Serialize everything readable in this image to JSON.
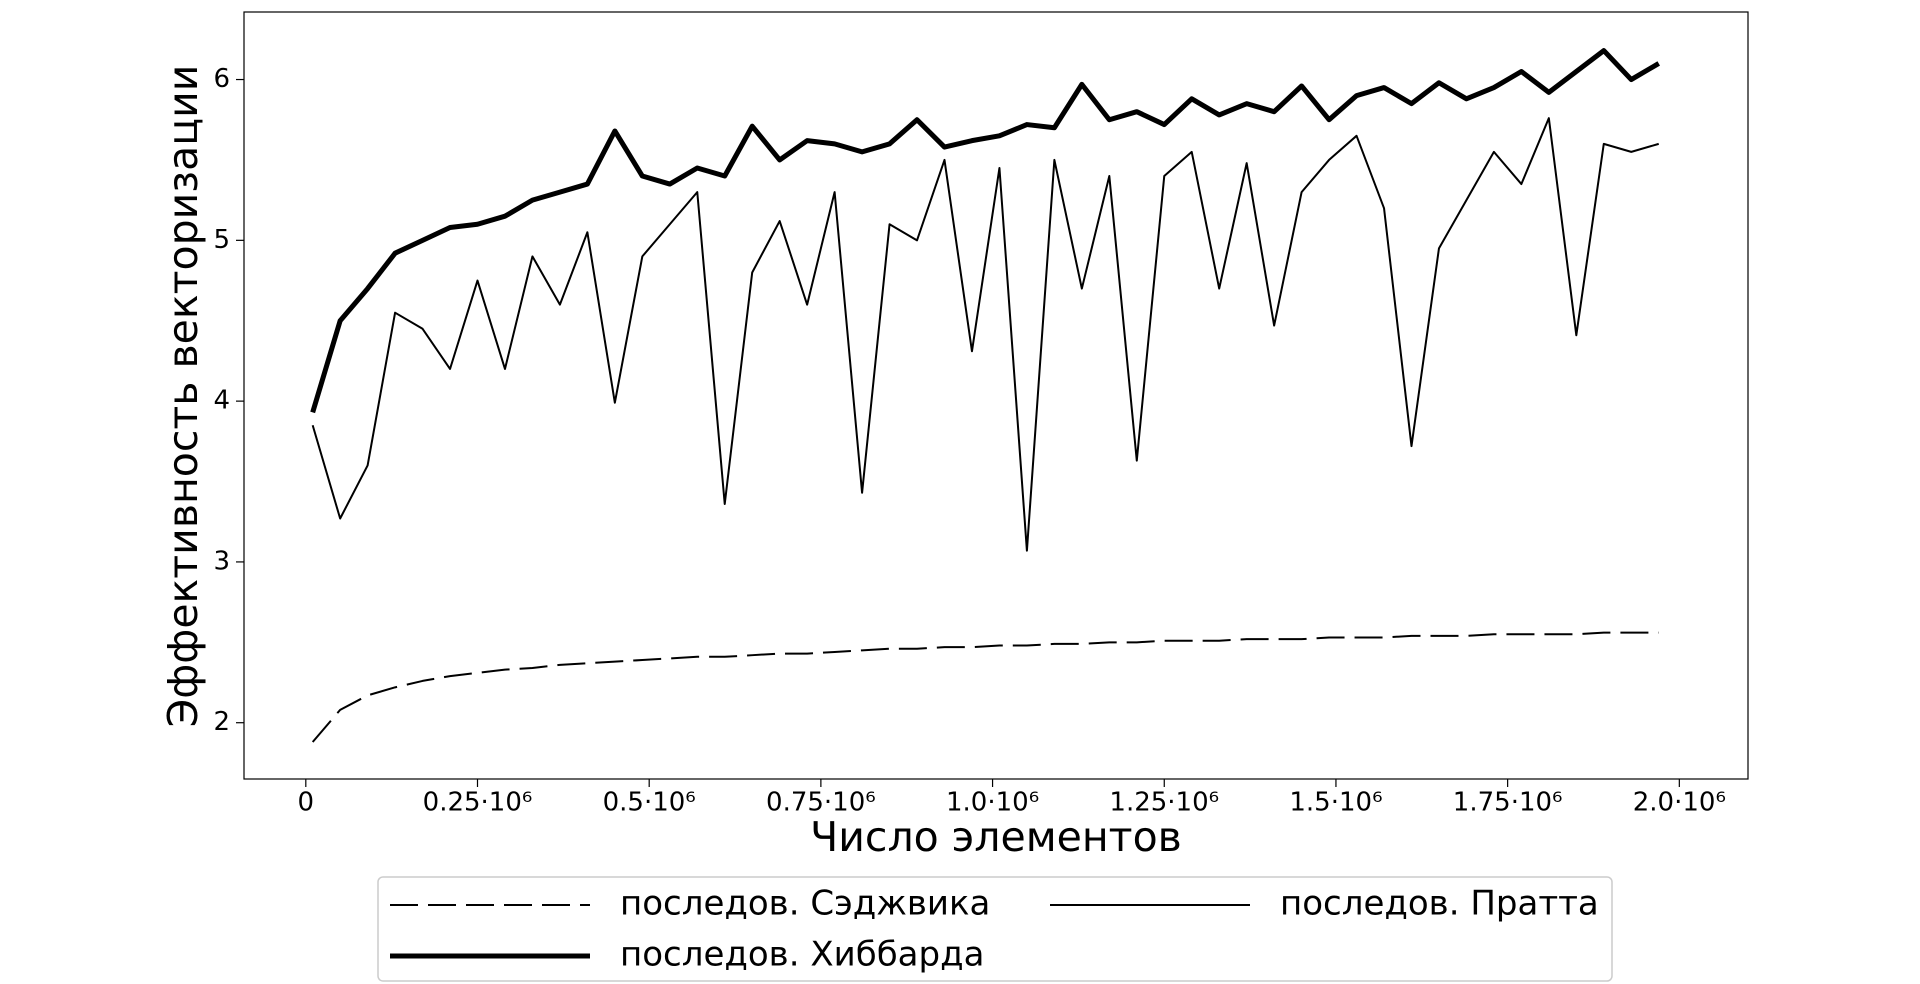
{
  "chart_data": {
    "type": "line",
    "x_label": "Число элементов",
    "y_label": "Эффективность векторизации",
    "x": [
      10000,
      50000,
      90000,
      130000,
      170000,
      210000,
      250000,
      290000,
      330000,
      370000,
      410000,
      450000,
      490000,
      530000,
      570000,
      610000,
      650000,
      690000,
      730000,
      770000,
      810000,
      850000,
      890000,
      930000,
      970000,
      1010000,
      1050000,
      1090000,
      1130000,
      1170000,
      1210000,
      1250000,
      1290000,
      1330000,
      1370000,
      1410000,
      1450000,
      1490000,
      1530000,
      1570000,
      1610000,
      1650000,
      1690000,
      1730000,
      1770000,
      1810000,
      1850000,
      1890000,
      1930000,
      1970000
    ],
    "series": [
      {
        "name": "последов. Сэджвика",
        "color": "#000000",
        "style": "dashed",
        "width": 2,
        "values": [
          1.88,
          2.08,
          2.17,
          2.22,
          2.26,
          2.29,
          2.31,
          2.33,
          2.34,
          2.36,
          2.37,
          2.38,
          2.39,
          2.4,
          2.41,
          2.41,
          2.42,
          2.43,
          2.43,
          2.44,
          2.45,
          2.46,
          2.46,
          2.47,
          2.47,
          2.48,
          2.48,
          2.49,
          2.49,
          2.5,
          2.5,
          2.51,
          2.51,
          2.51,
          2.52,
          2.52,
          2.52,
          2.53,
          2.53,
          2.53,
          2.54,
          2.54,
          2.54,
          2.55,
          2.55,
          2.55,
          2.55,
          2.56,
          2.56,
          2.56
        ]
      },
      {
        "name": "последов. Пратта",
        "color": "#000000",
        "style": "solid",
        "width": 2,
        "values": [
          3.85,
          3.27,
          3.6,
          4.55,
          4.45,
          4.2,
          4.75,
          4.2,
          4.9,
          4.6,
          5.05,
          3.99,
          4.9,
          5.1,
          5.3,
          3.36,
          4.8,
          5.12,
          4.6,
          5.3,
          3.43,
          5.1,
          5.0,
          5.5,
          4.31,
          5.45,
          3.07,
          5.5,
          4.7,
          5.4,
          3.63,
          5.4,
          5.55,
          4.7,
          5.48,
          4.47,
          5.3,
          5.5,
          5.65,
          5.2,
          3.72,
          4.95,
          5.25,
          5.55,
          5.35,
          5.76,
          4.41,
          5.6,
          5.55,
          5.6
        ]
      },
      {
        "name": "последов. Хиббарда",
        "color": "#000000",
        "style": "solid",
        "width": 5,
        "values": [
          3.93,
          4.5,
          4.7,
          4.92,
          5.0,
          5.08,
          5.1,
          5.15,
          5.25,
          5.3,
          5.35,
          5.68,
          5.4,
          5.35,
          5.45,
          5.4,
          5.71,
          5.5,
          5.62,
          5.6,
          5.55,
          5.6,
          5.75,
          5.58,
          5.62,
          5.65,
          5.72,
          5.7,
          5.97,
          5.75,
          5.8,
          5.72,
          5.88,
          5.78,
          5.85,
          5.8,
          5.96,
          5.75,
          5.9,
          5.95,
          5.85,
          5.98,
          5.88,
          5.95,
          6.05,
          5.92,
          6.05,
          6.18,
          6.0,
          6.1
        ]
      }
    ],
    "xlim": [
      -90000,
      2100000
    ],
    "ylim": [
      1.65,
      6.42
    ],
    "xticks": [
      0,
      {
        "value": 250000,
        "label": "0.25·10⁶"
      },
      {
        "value": 500000,
        "label": "0.5·10⁶"
      },
      {
        "value": 750000,
        "label": "0.75·10⁶"
      },
      {
        "value": 1000000,
        "label": "1.0·10⁶"
      },
      {
        "value": 1250000,
        "label": "1.25·10⁶"
      },
      {
        "value": 1500000,
        "label": "1.5·10⁶"
      },
      {
        "value": 1750000,
        "label": "1.75·10⁶"
      },
      {
        "value": 2000000,
        "label": "2.0·10⁶"
      }
    ],
    "yticks": [
      2,
      3,
      4,
      5,
      6
    ],
    "grid": false,
    "legend": "bottom"
  }
}
